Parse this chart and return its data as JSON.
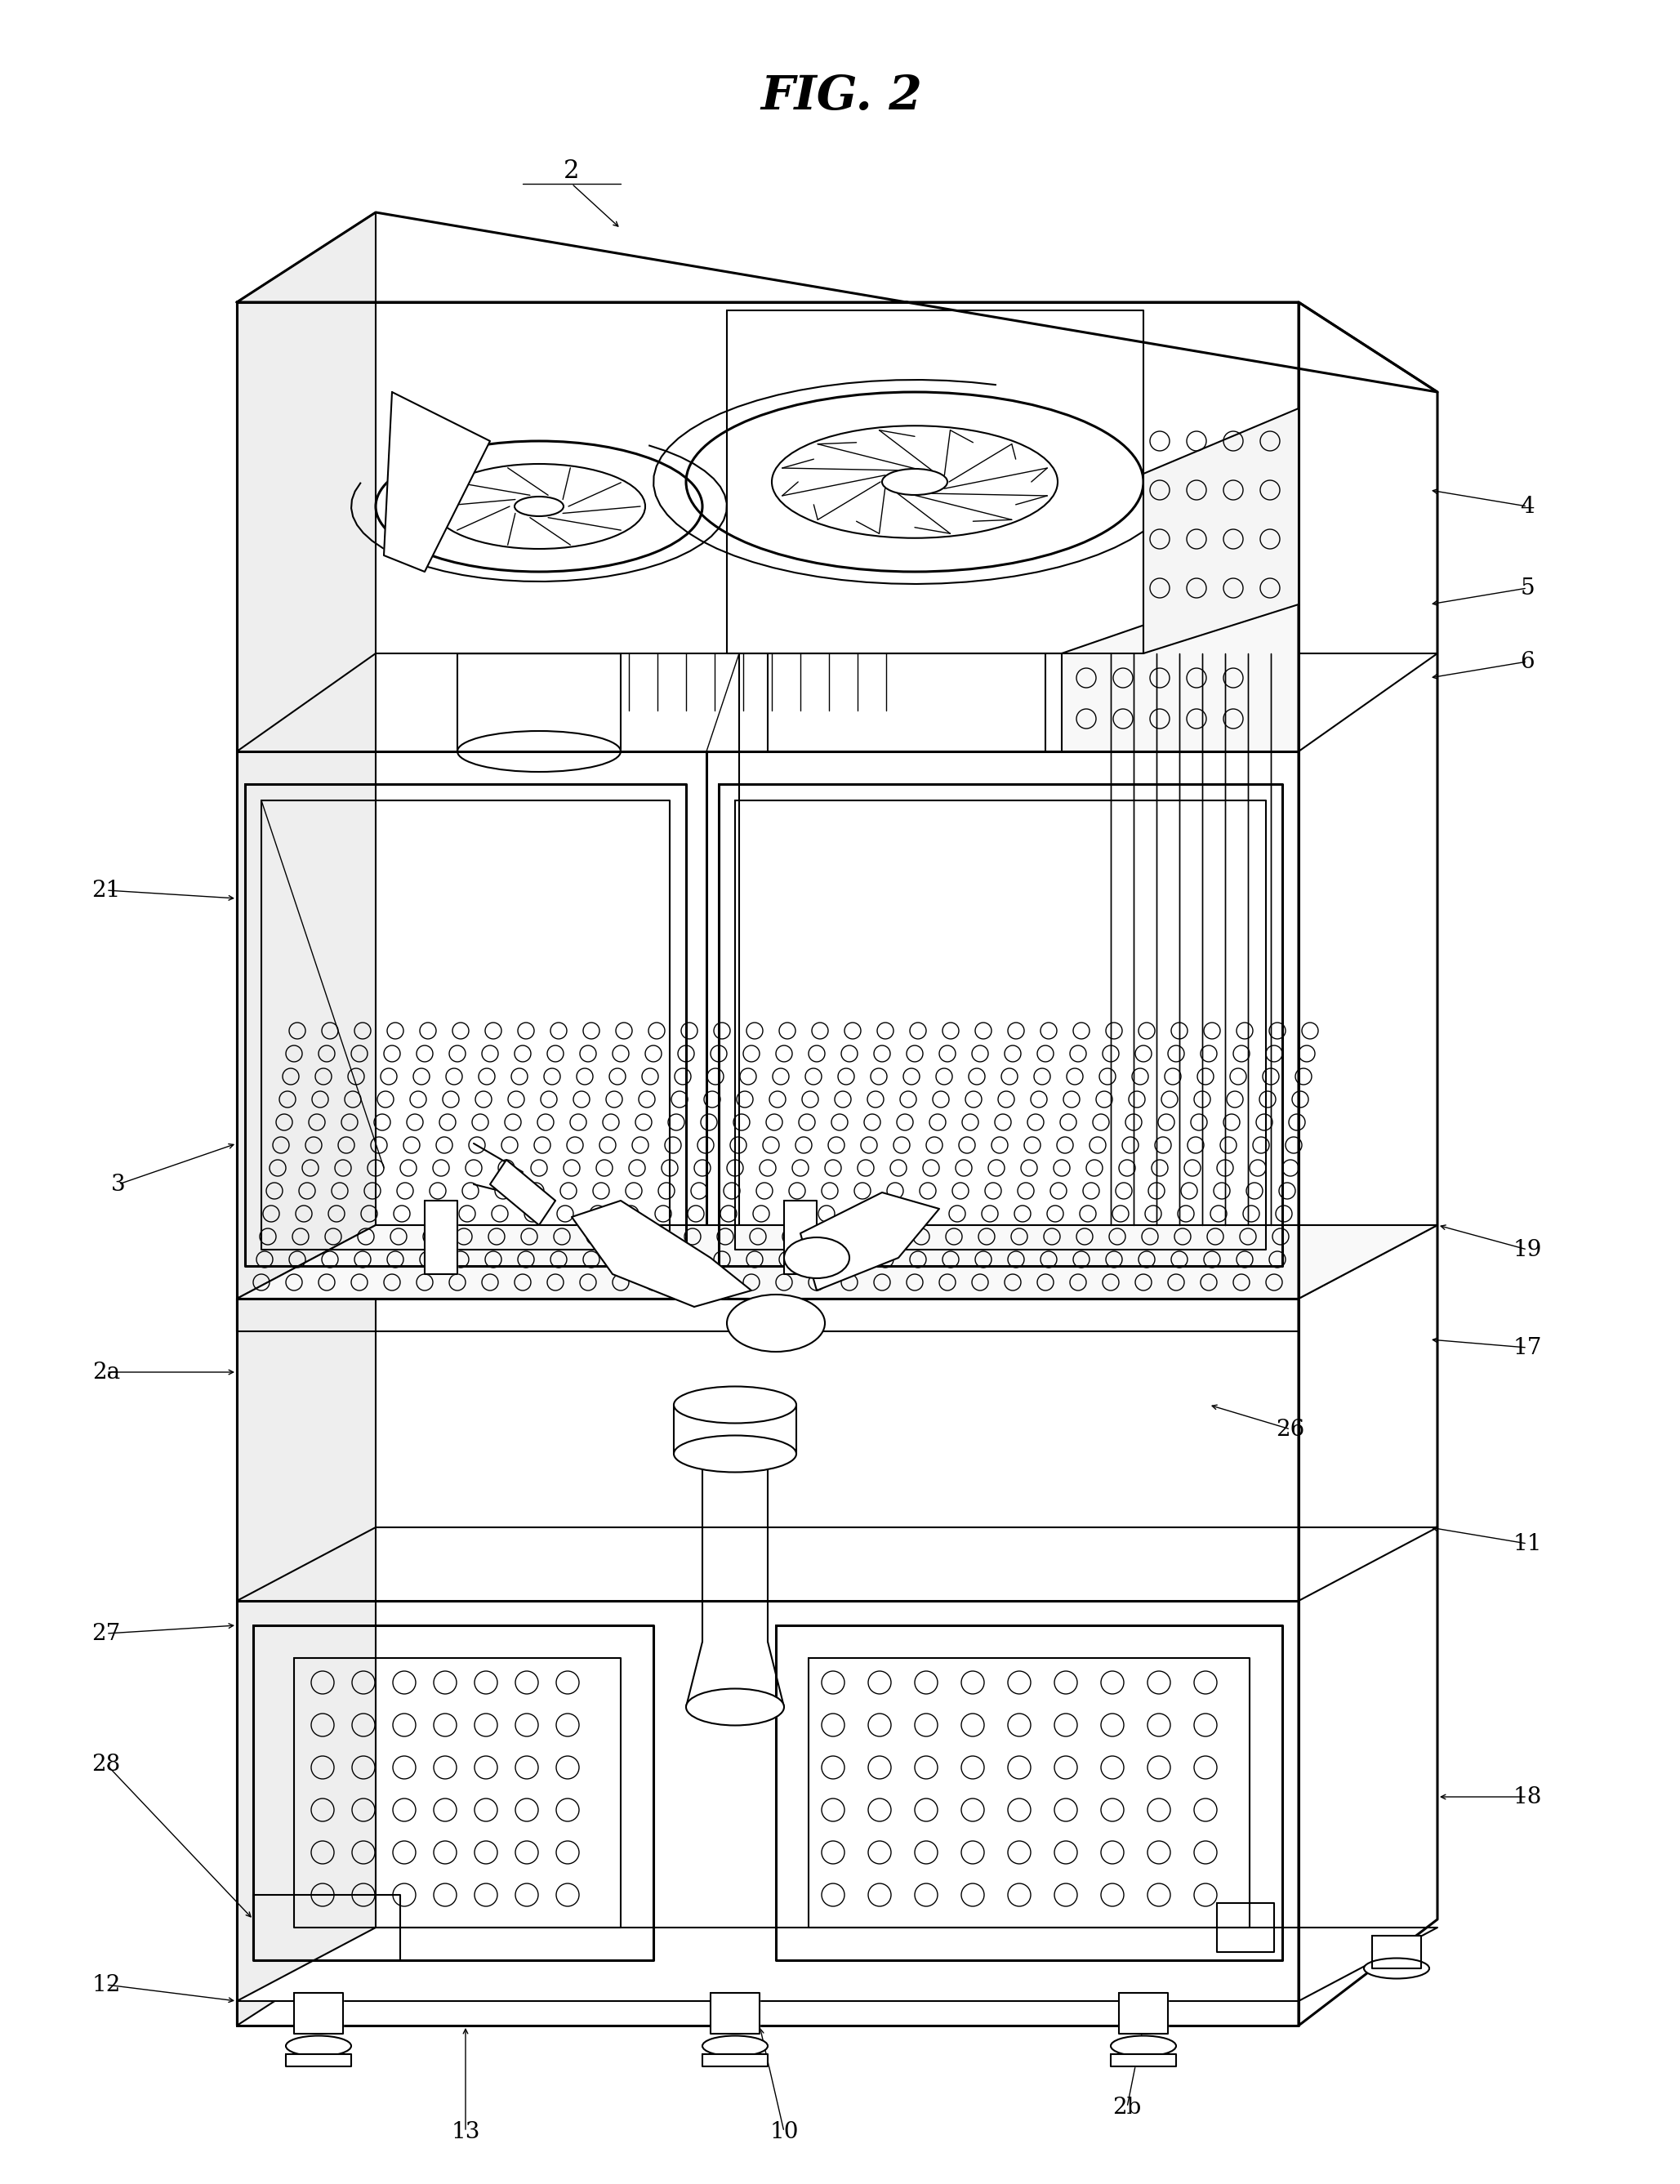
{
  "title": "FIG. 2",
  "bg_color": "#ffffff",
  "line_color": "#000000",
  "lw_thick": 2.2,
  "lw_med": 1.5,
  "lw_thin": 1.0,
  "label_fs": 20,
  "title_fs": 42
}
